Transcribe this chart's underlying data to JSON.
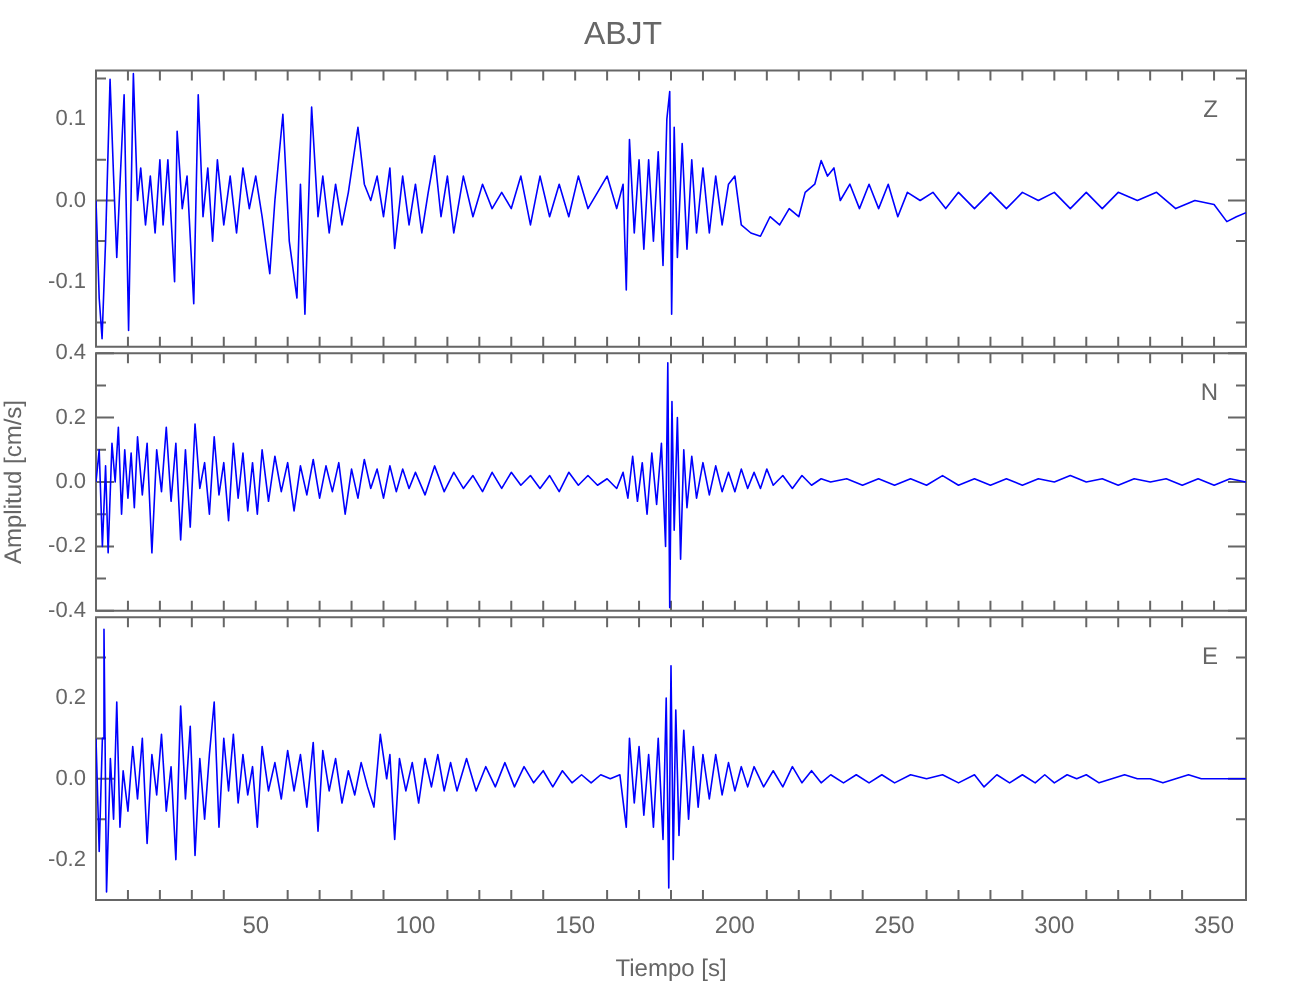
{
  "chart_data": [
    {
      "type": "line",
      "title": "ABJT",
      "color": "#0000ff",
      "tick_labels": "y",
      "xlim": [
        0,
        360
      ],
      "ylim": [
        -0.18,
        0.16
      ],
      "xticks": [
        {
          "value": 10,
          "label": null
        },
        {
          "value": 20,
          "label": null
        },
        {
          "value": 30,
          "label": null
        },
        {
          "value": 40,
          "label": null
        },
        {
          "value": 50,
          "label": null
        },
        {
          "value": 60,
          "label": null
        },
        {
          "value": 70,
          "label": null
        },
        {
          "value": 80,
          "label": null
        },
        {
          "value": 90,
          "label": null
        },
        {
          "value": 100,
          "label": null
        },
        {
          "value": 110,
          "label": null
        },
        {
          "value": 120,
          "label": null
        },
        {
          "value": 130,
          "label": null
        },
        {
          "value": 140,
          "label": null
        },
        {
          "value": 150,
          "label": null
        },
        {
          "value": 160,
          "label": null
        },
        {
          "value": 170,
          "label": null
        },
        {
          "value": 180,
          "label": null
        },
        {
          "value": 190,
          "label": null
        },
        {
          "value": 200,
          "label": null
        },
        {
          "value": 210,
          "label": null
        },
        {
          "value": 220,
          "label": null
        },
        {
          "value": 230,
          "label": null
        },
        {
          "value": 240,
          "label": null
        },
        {
          "value": 250,
          "label": null
        },
        {
          "value": 260,
          "label": null
        },
        {
          "value": 270,
          "label": null
        },
        {
          "value": 280,
          "label": null
        },
        {
          "value": 290,
          "label": null
        },
        {
          "value": 300,
          "label": null
        },
        {
          "value": 310,
          "label": null
        },
        {
          "value": 320,
          "label": null
        },
        {
          "value": 330,
          "label": null
        },
        {
          "value": 340,
          "label": null
        },
        {
          "value": 350,
          "label": null
        }
      ],
      "yticks": [
        {
          "value": -0.15,
          "label": null
        },
        -0.1,
        {
          "value": -0.05,
          "label": null
        },
        {
          "value": 0,
          "label": "0.0"
        },
        {
          "value": 0.05,
          "label": null
        },
        0.1,
        {
          "value": 0.15,
          "label": null
        }
      ],
      "annotations": [
        "Z"
      ],
      "x": [
        0,
        1,
        1.9,
        3,
        4.4,
        5.5,
        6.5,
        7.5,
        8.8,
        10.2,
        11.7,
        13,
        14,
        15.5,
        17,
        18.5,
        20,
        21,
        22.5,
        24.6,
        25.4,
        27,
        28.5,
        30.6,
        32,
        33.5,
        35,
        36.5,
        38,
        40,
        42,
        44,
        46,
        48,
        50,
        52,
        54.4,
        56,
        58.5,
        60.5,
        62.9,
        64,
        65.4,
        67.5,
        69.5,
        71,
        73,
        75,
        77,
        79,
        82,
        84,
        86,
        88,
        90,
        92,
        93.5,
        96,
        98,
        100,
        102,
        104,
        106,
        108,
        110,
        112,
        115,
        118,
        121,
        124,
        127,
        130,
        133,
        136,
        139,
        142,
        145,
        148,
        151,
        154,
        157,
        160,
        163,
        165,
        166,
        167,
        168.5,
        170,
        171.5,
        173,
        174.5,
        176,
        177.5,
        178.7,
        179.6,
        180.2,
        181,
        182,
        183.5,
        185,
        186.5,
        188,
        190,
        192,
        194,
        196,
        198,
        200,
        202,
        205,
        208,
        211,
        214,
        217,
        220,
        222,
        225,
        227,
        229,
        231,
        233,
        236,
        239,
        242,
        245,
        248,
        251,
        254,
        258,
        262,
        266,
        270,
        275,
        280,
        285,
        290,
        295,
        300,
        305,
        310,
        315,
        320,
        326,
        332,
        338,
        344,
        350,
        354,
        357,
        360
      ],
      "values": [
        0,
        -0.12,
        -0.17,
        -0.05,
        0.149,
        0.03,
        -0.07,
        0.02,
        0.13,
        -0.16,
        0.156,
        0,
        0.04,
        -0.03,
        0.03,
        -0.04,
        0.05,
        -0.03,
        0.05,
        -0.1,
        0.085,
        -0.01,
        0.03,
        -0.127,
        0.13,
        -0.02,
        0.04,
        -0.05,
        0.05,
        -0.03,
        0.03,
        -0.04,
        0.04,
        -0.01,
        0.03,
        -0.02,
        -0.09,
        0,
        0.106,
        -0.05,
        -0.12,
        0.02,
        -0.14,
        0.115,
        -0.02,
        0.03,
        -0.04,
        0.02,
        -0.03,
        0.01,
        0.09,
        0.02,
        0,
        0.03,
        -0.02,
        0.04,
        -0.059,
        0.03,
        -0.03,
        0.02,
        -0.04,
        0.01,
        0.055,
        -0.02,
        0.03,
        -0.04,
        0.03,
        -0.02,
        0.02,
        -0.01,
        0.01,
        -0.01,
        0.03,
        -0.03,
        0.03,
        -0.02,
        0.02,
        -0.02,
        0.03,
        -0.01,
        0.01,
        0.03,
        -0.01,
        0.02,
        -0.11,
        0.075,
        -0.04,
        0.05,
        -0.06,
        0.05,
        -0.05,
        0.06,
        -0.08,
        0.1,
        0.134,
        -0.14,
        0.09,
        -0.07,
        0.07,
        -0.06,
        0.05,
        -0.04,
        0.04,
        -0.04,
        0.03,
        -0.03,
        0.02,
        0.03,
        -0.03,
        -0.04,
        -0.044,
        -0.02,
        -0.03,
        -0.01,
        -0.02,
        0.01,
        0.02,
        0.049,
        0.03,
        0.04,
        0,
        0.02,
        -0.01,
        0.02,
        -0.01,
        0.02,
        -0.02,
        0.01,
        0,
        0.01,
        -0.01,
        0.01,
        -0.01,
        0.01,
        -0.01,
        0.01,
        0,
        0.01,
        -0.01,
        0.01,
        -0.01,
        0.01,
        0,
        0.01,
        -0.01,
        0,
        -0.005,
        -0.026,
        -0.02,
        -0.015
      ]
    },
    {
      "type": "line",
      "ylabel": "Amplitud [cm/s]",
      "color": "#0000ff",
      "tick_labels": "y",
      "xlim": [
        0,
        360
      ],
      "ylim": [
        -0.4,
        0.4
      ],
      "xticks": [
        {
          "value": 10,
          "label": null
        },
        {
          "value": 20,
          "label": null
        },
        {
          "value": 30,
          "label": null
        },
        {
          "value": 40,
          "label": null
        },
        {
          "value": 50,
          "label": null
        },
        {
          "value": 60,
          "label": null
        },
        {
          "value": 70,
          "label": null
        },
        {
          "value": 80,
          "label": null
        },
        {
          "value": 90,
          "label": null
        },
        {
          "value": 100,
          "label": null
        },
        {
          "value": 110,
          "label": null
        },
        {
          "value": 120,
          "label": null
        },
        {
          "value": 130,
          "label": null
        },
        {
          "value": 140,
          "label": null
        },
        {
          "value": 150,
          "label": null
        },
        {
          "value": 160,
          "label": null
        },
        {
          "value": 170,
          "label": null
        },
        {
          "value": 180,
          "label": null
        },
        {
          "value": 190,
          "label": null
        },
        {
          "value": 200,
          "label": null
        },
        {
          "value": 210,
          "label": null
        },
        {
          "value": 220,
          "label": null
        },
        {
          "value": 230,
          "label": null
        },
        {
          "value": 240,
          "label": null
        },
        {
          "value": 250,
          "label": null
        },
        {
          "value": 260,
          "label": null
        },
        {
          "value": 270,
          "label": null
        },
        {
          "value": 280,
          "label": null
        },
        {
          "value": 290,
          "label": null
        },
        {
          "value": 300,
          "label": null
        },
        {
          "value": 310,
          "label": null
        },
        {
          "value": 320,
          "label": null
        },
        {
          "value": 330,
          "label": null
        },
        {
          "value": 340,
          "label": null
        },
        {
          "value": 350,
          "label": null
        }
      ],
      "yticks": [
        -0.4,
        {
          "value": -0.3,
          "label": null
        },
        -0.2,
        {
          "value": -0.1,
          "label": null
        },
        {
          "value": 0,
          "label": "0.0"
        },
        {
          "value": 0.1,
          "label": null
        },
        0.2,
        {
          "value": 0.3,
          "label": null
        },
        0.4
      ],
      "annotations": [
        "N"
      ],
      "x": [
        0,
        1,
        2,
        3,
        3.8,
        5,
        6,
        7,
        8,
        9,
        10,
        11,
        12,
        13,
        14.5,
        16,
        17.5,
        19,
        20.5,
        22,
        23.5,
        25,
        26.5,
        28,
        29.5,
        31,
        32.5,
        34,
        35.5,
        37,
        38.5,
        40,
        41.5,
        43,
        44.5,
        46,
        47.5,
        49,
        50.5,
        52,
        54,
        56,
        58,
        60,
        62,
        64,
        66,
        68,
        70,
        72,
        74,
        76,
        78,
        80,
        82,
        84,
        86,
        88,
        90,
        92,
        94,
        96,
        98,
        100,
        103,
        106,
        109,
        112,
        115,
        118,
        121,
        124,
        127,
        130,
        133,
        136,
        139,
        142,
        145,
        148,
        151,
        154,
        157,
        160,
        163,
        165,
        166.5,
        168,
        169.5,
        171,
        172.5,
        174,
        175.5,
        177,
        178.3,
        179,
        179.6,
        180.3,
        181,
        182,
        183,
        184,
        185,
        186.5,
        188,
        190,
        192,
        194,
        196,
        198,
        200,
        202,
        204,
        206,
        208,
        210,
        212,
        215,
        218,
        221,
        224,
        227,
        230,
        235,
        240,
        245,
        250,
        255,
        260,
        265,
        270,
        275,
        280,
        285,
        290,
        295,
        300,
        305,
        310,
        315,
        320,
        325,
        330,
        335,
        340,
        345,
        350,
        355,
        360
      ],
      "values": [
        0,
        0.1,
        -0.2,
        0.05,
        -0.22,
        0.12,
        0,
        0.17,
        -0.1,
        0.1,
        -0.05,
        0.09,
        -0.08,
        0.14,
        -0.04,
        0.12,
        -0.22,
        0.1,
        -0.03,
        0.17,
        -0.06,
        0.12,
        -0.18,
        0.1,
        -0.14,
        0.18,
        -0.02,
        0.06,
        -0.1,
        0.14,
        -0.04,
        0.06,
        -0.12,
        0.12,
        -0.05,
        0.09,
        -0.09,
        0.06,
        -0.1,
        0.1,
        -0.06,
        0.08,
        -0.03,
        0.06,
        -0.09,
        0.05,
        -0.04,
        0.07,
        -0.05,
        0.05,
        -0.03,
        0.06,
        -0.1,
        0.04,
        -0.05,
        0.07,
        -0.02,
        0.04,
        -0.05,
        0.05,
        -0.03,
        0.04,
        -0.02,
        0.03,
        -0.04,
        0.05,
        -0.03,
        0.03,
        -0.02,
        0.02,
        -0.03,
        0.03,
        -0.02,
        0.03,
        -0.01,
        0.02,
        -0.02,
        0.02,
        -0.03,
        0.03,
        -0.01,
        0.02,
        -0.01,
        0.01,
        -0.02,
        0.03,
        -0.05,
        0.08,
        -0.06,
        0.06,
        -0.1,
        0.09,
        -0.07,
        0.12,
        -0.2,
        0.37,
        -0.39,
        0.25,
        -0.15,
        0.2,
        -0.24,
        0.1,
        -0.08,
        0.08,
        -0.05,
        0.06,
        -0.04,
        0.05,
        -0.03,
        0.03,
        -0.03,
        0.04,
        -0.02,
        0.03,
        -0.02,
        0.04,
        -0.01,
        0.02,
        -0.02,
        0.02,
        -0.01,
        0.01,
        0,
        0.01,
        -0.01,
        0.01,
        -0.01,
        0.01,
        -0.01,
        0.02,
        -0.01,
        0.01,
        -0.01,
        0.01,
        -0.01,
        0.01,
        0,
        0.02,
        0,
        0.01,
        -0.01,
        0.01,
        0,
        0.01,
        -0.01,
        0.01,
        -0.01,
        0.01,
        0
      ]
    },
    {
      "type": "line",
      "xlabel": "Tiempo [s]",
      "color": "#0000ff",
      "xlim": [
        0,
        360
      ],
      "ylim": [
        -0.3,
        0.4
      ],
      "xticks": [
        {
          "value": 10,
          "label": null
        },
        {
          "value": 20,
          "label": null
        },
        {
          "value": 30,
          "label": null
        },
        {
          "value": 40,
          "label": null
        },
        50,
        {
          "value": 60,
          "label": null
        },
        {
          "value": 70,
          "label": null
        },
        {
          "value": 80,
          "label": null
        },
        {
          "value": 90,
          "label": null
        },
        100,
        {
          "value": 110,
          "label": null
        },
        {
          "value": 120,
          "label": null
        },
        {
          "value": 130,
          "label": null
        },
        {
          "value": 140,
          "label": null
        },
        150,
        {
          "value": 160,
          "label": null
        },
        {
          "value": 170,
          "label": null
        },
        {
          "value": 180,
          "label": null
        },
        {
          "value": 190,
          "label": null
        },
        200,
        {
          "value": 210,
          "label": null
        },
        {
          "value": 220,
          "label": null
        },
        {
          "value": 230,
          "label": null
        },
        {
          "value": 240,
          "label": null
        },
        250,
        {
          "value": 260,
          "label": null
        },
        {
          "value": 270,
          "label": null
        },
        {
          "value": 280,
          "label": null
        },
        {
          "value": 290,
          "label": null
        },
        300,
        {
          "value": 310,
          "label": null
        },
        {
          "value": 320,
          "label": null
        },
        {
          "value": 330,
          "label": null
        },
        {
          "value": 340,
          "label": null
        },
        350
      ],
      "yticks": [
        {
          "value": -0.3,
          "label": null
        },
        -0.2,
        {
          "value": -0.1,
          "label": null
        },
        {
          "value": 0,
          "label": "0.0"
        },
        {
          "value": 0.1,
          "label": null
        },
        0.2,
        {
          "value": 0.3,
          "label": null
        }
      ],
      "annotations": [
        "E"
      ],
      "x": [
        0,
        1,
        2,
        2.5,
        3.3,
        4.5,
        5.5,
        6.5,
        7.5,
        8.5,
        10,
        11.5,
        13,
        14.5,
        16,
        17.5,
        19,
        20.5,
        22,
        23.5,
        25,
        26.5,
        28,
        29.5,
        31,
        32.5,
        34,
        35.5,
        37,
        38.5,
        40,
        41.5,
        43,
        44.5,
        46,
        47.5,
        49,
        50.5,
        52,
        54,
        56,
        58,
        60,
        62,
        64,
        66,
        68,
        69.5,
        71,
        73,
        75,
        77,
        79,
        81,
        83,
        85,
        87,
        89,
        91,
        92,
        93.5,
        95,
        97,
        99,
        101,
        103,
        105,
        107,
        109,
        111,
        113,
        116,
        119,
        122,
        125,
        128,
        131,
        134,
        137,
        140,
        143,
        146,
        149,
        152,
        155,
        158,
        161,
        164,
        166,
        167,
        168.5,
        170,
        171.5,
        173,
        174.5,
        176,
        177.5,
        178.5,
        179.3,
        180,
        180.7,
        181.5,
        182.5,
        184,
        185.5,
        187,
        188.5,
        190,
        192,
        194,
        196,
        198,
        200,
        202,
        204,
        206,
        209,
        212,
        215,
        218,
        221,
        224,
        227,
        230,
        234,
        238,
        242,
        246,
        250,
        255,
        260,
        265,
        270,
        275,
        278,
        282,
        286,
        290,
        294,
        297,
        300,
        304,
        307,
        310,
        314,
        318,
        322,
        326,
        330,
        334,
        338,
        342,
        346,
        350,
        355,
        360
      ],
      "values": [
        0.1,
        -0.18,
        0.1,
        0.37,
        -0.28,
        0.05,
        -0.1,
        0.19,
        -0.12,
        0.02,
        -0.08,
        0.08,
        -0.05,
        0.1,
        -0.16,
        0.06,
        -0.04,
        0.11,
        -0.08,
        0.03,
        -0.2,
        0.18,
        -0.05,
        0.13,
        -0.19,
        0.05,
        -0.1,
        0.06,
        0.19,
        -0.12,
        0.1,
        -0.03,
        0.11,
        -0.06,
        0.06,
        -0.04,
        0.03,
        -0.12,
        0.08,
        -0.03,
        0.04,
        -0.05,
        0.07,
        -0.03,
        0.06,
        -0.07,
        0.09,
        -0.13,
        0.07,
        -0.03,
        0.05,
        -0.06,
        0.02,
        -0.04,
        0.04,
        -0.02,
        -0.07,
        0.11,
        0,
        0.06,
        -0.15,
        0.05,
        -0.03,
        0.04,
        -0.06,
        0.05,
        -0.02,
        0.06,
        -0.03,
        0.04,
        -0.03,
        0.05,
        -0.03,
        0.03,
        -0.02,
        0.04,
        -0.02,
        0.03,
        -0.01,
        0.02,
        -0.02,
        0.02,
        -0.01,
        0.01,
        -0.01,
        0.01,
        0,
        0.01,
        -0.12,
        0.1,
        -0.06,
        0.08,
        -0.09,
        0.06,
        -0.12,
        0.1,
        -0.15,
        0.2,
        -0.27,
        0.28,
        -0.2,
        0.17,
        -0.14,
        0.12,
        -0.1,
        0.08,
        -0.07,
        0.06,
        -0.05,
        0.06,
        -0.04,
        0.04,
        -0.03,
        0.03,
        -0.02,
        0.03,
        -0.02,
        0.02,
        -0.02,
        0.03,
        -0.01,
        0.02,
        -0.01,
        0.01,
        -0.01,
        0.01,
        -0.01,
        0.01,
        -0.01,
        0.01,
        0,
        0.01,
        -0.01,
        0.01,
        -0.02,
        0.01,
        -0.01,
        0.01,
        -0.01,
        0.01,
        -0.01,
        0.01,
        0,
        0.01,
        -0.01,
        0,
        0.01,
        0,
        0,
        -0.01,
        0,
        0.01,
        0,
        0,
        0,
        0
      ]
    }
  ]
}
